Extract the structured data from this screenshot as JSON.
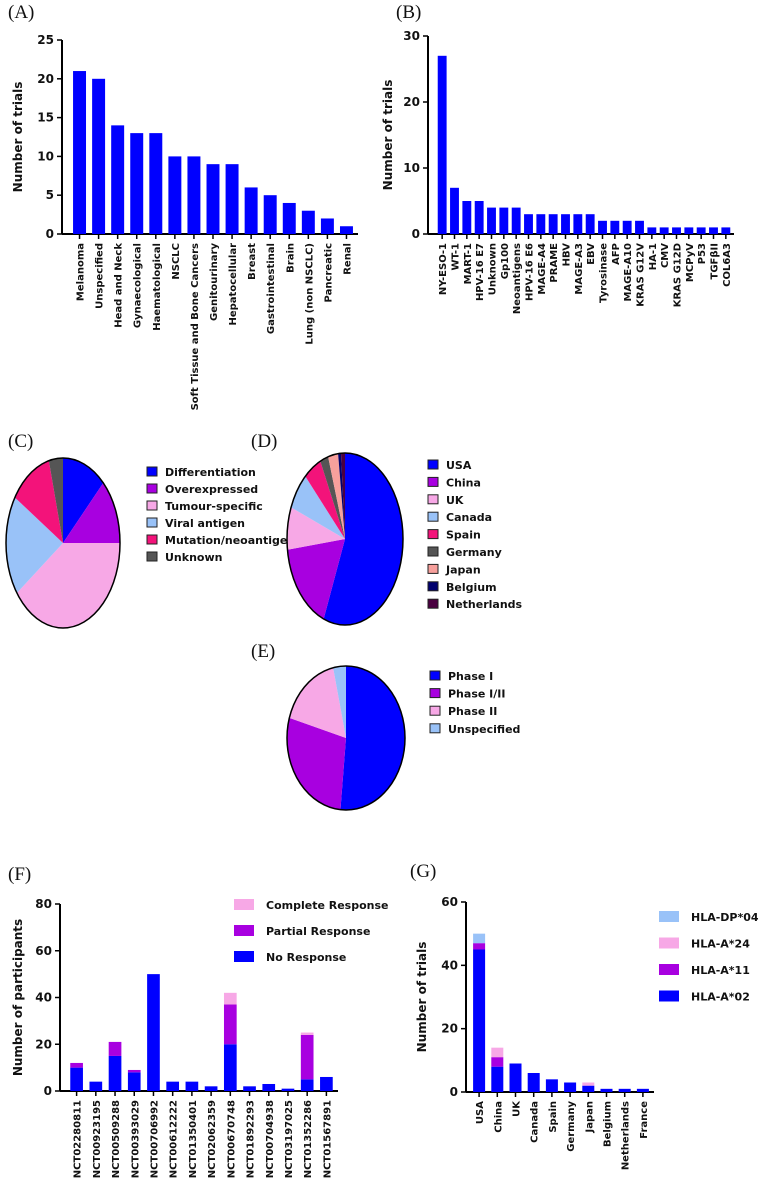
{
  "colors": {
    "blue": "#0000ff",
    "purple": "#a800e0",
    "pink": "#f7a8e6",
    "lightblue": "#99c2f8",
    "crimson": "#f3137a",
    "gray": "#555555",
    "salmon": "#f7a09c",
    "navy": "#00006e",
    "maroon": "#4a0040"
  },
  "chart_data": [
    {
      "panel": "(A)",
      "type": "bar",
      "ylabel": "Number of trials",
      "ylim": [
        0,
        25
      ],
      "yticks": [
        0,
        5,
        10,
        15,
        20,
        25
      ],
      "categories": [
        "Melanoma",
        "Unspecified",
        "Head and Neck",
        "Gynaecological",
        "Haematological",
        "NSCLC",
        "Soft Tissue and Bone Cancers",
        "Genitourinary",
        "Hepatocellular",
        "Breast",
        "Gastrointestinal",
        "Brain",
        "Lung (non NSCLC)",
        "Pancreatic",
        "Renal"
      ],
      "values": [
        21,
        20,
        14,
        13,
        13,
        10,
        10,
        9,
        9,
        6,
        5,
        4,
        3,
        2,
        1
      ]
    },
    {
      "panel": "(B)",
      "type": "bar",
      "ylabel": "Number of trials",
      "ylim": [
        0,
        30
      ],
      "yticks": [
        0,
        10,
        20,
        30
      ],
      "categories": [
        "NY-ESO-1",
        "WT-1",
        "MART-1",
        "HPV-16 E7",
        "Unknown",
        "Gp100",
        "Neoantigens",
        "HPV-16 E6",
        "MAGE-A4",
        "PRAME",
        "HBV",
        "MAGE-A3",
        "EBV",
        "Tyrosinase",
        "AFP",
        "MAGE-A10",
        "KRAS G12V",
        "HA-1",
        "CMV",
        "KRAS G12D",
        "MCPyV",
        "P53",
        "TGFβII",
        "COL6A3"
      ],
      "values": [
        27,
        7,
        5,
        5,
        4,
        4,
        4,
        3,
        3,
        3,
        3,
        3,
        3,
        2,
        2,
        2,
        2,
        1,
        1,
        1,
        1,
        1,
        1,
        1
      ]
    },
    {
      "panel": "(C)",
      "type": "pie",
      "labels": [
        "Differentiation",
        "Overexpressed",
        "Tumour-specific",
        "Viral antigen",
        "Mutation/neoantigen",
        "Unknown"
      ],
      "values": [
        12.5,
        12.5,
        40,
        19,
        12,
        4
      ],
      "colors": [
        "#0000ff",
        "#a800e0",
        "#f7a8e6",
        "#99c2f8",
        "#f3137a",
        "#555555"
      ]
    },
    {
      "panel": "(D)",
      "type": "pie",
      "labels": [
        "USA",
        "China",
        "UK",
        "Canada",
        "Spain",
        "Germany",
        "Japan",
        "Belgium",
        "Netherlands"
      ],
      "values": [
        56,
        17,
        8,
        7,
        5,
        2.3,
        2.8,
        0.8,
        1.1
      ],
      "colors": [
        "#0000ff",
        "#a800e0",
        "#f7a8e6",
        "#99c2f8",
        "#f3137a",
        "#555555",
        "#f7a09c",
        "#00006e",
        "#4a0040"
      ]
    },
    {
      "panel": "(E)",
      "type": "pie",
      "labels": [
        "Phase I",
        "Phase I/II",
        "Phase II",
        "Unspecified"
      ],
      "values": [
        51.5,
        28,
        17,
        3.5
      ],
      "colors": [
        "#0000ff",
        "#a800e0",
        "#f7a8e6",
        "#99c2f8"
      ]
    },
    {
      "panel": "(F)",
      "type": "bar",
      "stacked": true,
      "ylabel": "Number of participants",
      "ylim": [
        0,
        80
      ],
      "yticks": [
        0,
        20,
        40,
        60,
        80
      ],
      "legend": "top-right",
      "categories": [
        "NCT02280811",
        "NCT00923195",
        "NCT00509288",
        "NCT00393029",
        "NCT00706992",
        "NCT00612222",
        "NCT01350401",
        "NCT02062359",
        "NCT00670748",
        "NCT01892293",
        "NCT00704938",
        "NCT03197025",
        "NCT01352286",
        "NCT01567891"
      ],
      "series": [
        {
          "name": "No Response",
          "color": "#0000ff",
          "values": [
            10,
            4,
            15,
            8,
            50,
            4,
            4,
            2,
            20,
            2,
            3,
            1,
            5,
            6
          ]
        },
        {
          "name": "Partial Response",
          "color": "#a800e0",
          "values": [
            2,
            0,
            6,
            1,
            0,
            0,
            0,
            0,
            17,
            0,
            0,
            0,
            19,
            0
          ]
        },
        {
          "name": "Complete Response",
          "color": "#f7a8e6",
          "values": [
            0,
            0,
            0,
            0,
            0,
            0,
            0,
            0,
            5,
            0,
            0,
            0,
            1,
            0
          ]
        }
      ]
    },
    {
      "panel": "(G)",
      "type": "bar",
      "stacked": true,
      "ylabel": "Number of trials",
      "ylim": [
        0,
        60
      ],
      "yticks": [
        0,
        20,
        40,
        60
      ],
      "legend": "right",
      "categories": [
        "USA",
        "China",
        "UK",
        "Canada",
        "Spain",
        "Germany",
        "Japan",
        "Belgium",
        "Netherlands",
        "France"
      ],
      "series": [
        {
          "name": "HLA-A*02",
          "color": "#0000ff",
          "values": [
            45,
            8,
            9,
            6,
            4,
            3,
            2,
            1,
            1,
            1
          ]
        },
        {
          "name": "HLA-A*11",
          "color": "#a800e0",
          "values": [
            2,
            3,
            0,
            0,
            0,
            0,
            0,
            0,
            0,
            0
          ]
        },
        {
          "name": "HLA-A*24",
          "color": "#f7a8e6",
          "values": [
            0,
            3,
            0,
            0,
            0,
            0,
            1,
            0,
            0,
            0
          ]
        },
        {
          "name": "HLA-DP*04",
          "color": "#99c2f8",
          "values": [
            3,
            0,
            0,
            0,
            0,
            0,
            0,
            0,
            0,
            0
          ]
        }
      ]
    }
  ]
}
